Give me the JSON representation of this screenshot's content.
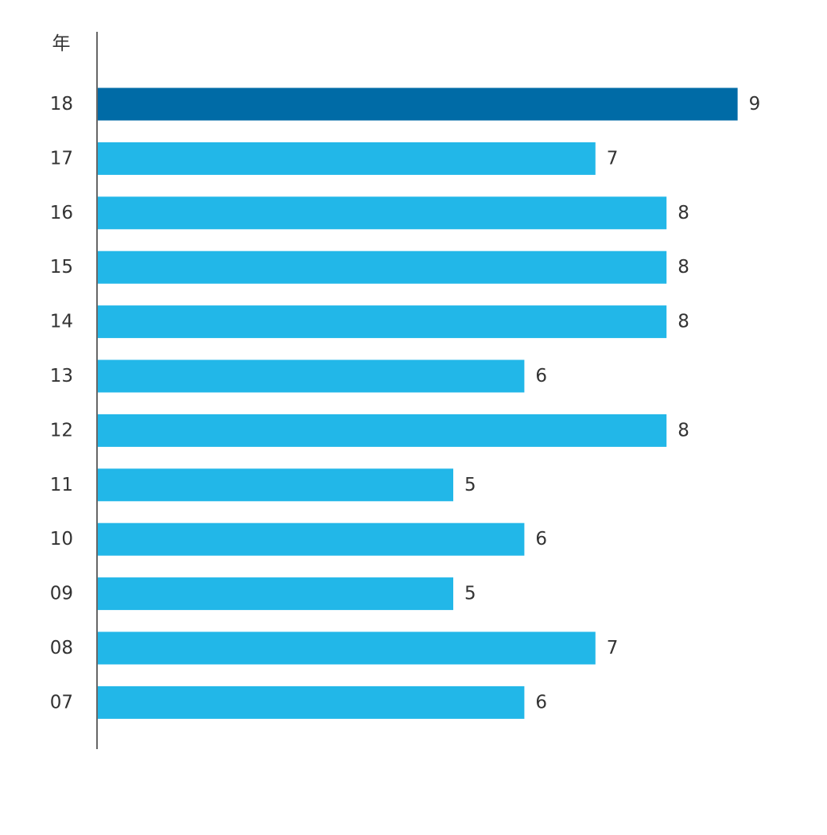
{
  "chart_data": {
    "type": "bar",
    "orientation": "horizontal",
    "ylabel": "年",
    "xlabel": "",
    "title": "",
    "categories": [
      "18",
      "17",
      "16",
      "15",
      "14",
      "13",
      "12",
      "11",
      "10",
      "09",
      "08",
      "07"
    ],
    "values": [
      9,
      7,
      8,
      8,
      8,
      6,
      8,
      5,
      6,
      5,
      7,
      6
    ],
    "xlim": [
      0,
      9
    ],
    "highlight_index": 0,
    "colors": {
      "highlight": "#006ba6",
      "bar": "#22b7e8",
      "axis": "#333333",
      "text": "#333333"
    },
    "grid": false,
    "legend": "none"
  }
}
